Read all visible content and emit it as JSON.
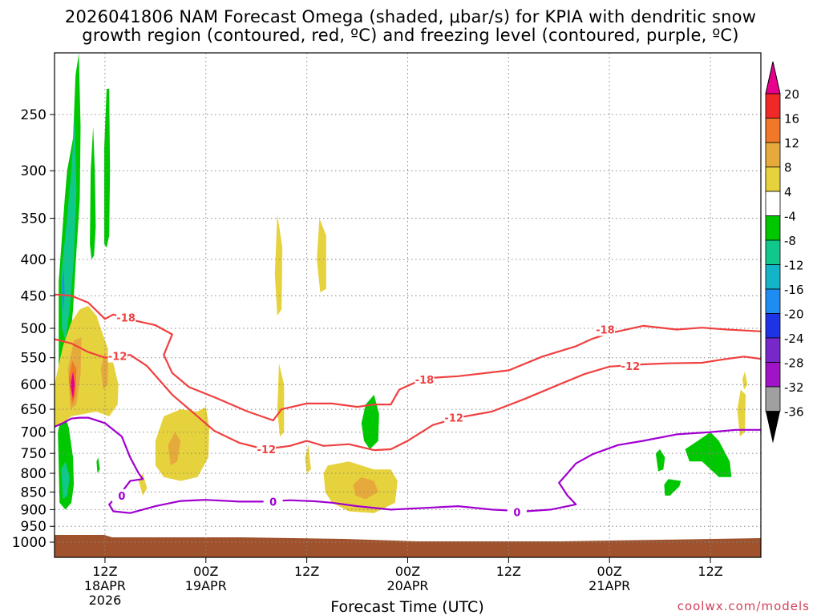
{
  "title_line1": "2026041806 NAM Forecast Omega (shaded, μbar/s) for KPIA with dendritic snow",
  "title_line2": "growth region (contoured, red, ºC) and freezing level (contoured, purple, ºC)",
  "watermark": "coolwx.com/models",
  "chart_data": {
    "type": "heatmap",
    "title": "2026041806 NAM Forecast Omega (shaded, μbar/s) for KPIA with dendritic snow growth region (contoured, red, ºC) and freezing level (contoured, purple, ºC)",
    "xlabel": "Forecast Time (UTC)",
    "ylabel": "",
    "x_ticks": [
      {
        "hour": 6,
        "label": [
          "12Z",
          "18APR",
          "2026"
        ]
      },
      {
        "hour": 18,
        "label": [
          "00Z",
          "19APR"
        ]
      },
      {
        "hour": 30,
        "label": [
          "12Z"
        ]
      },
      {
        "hour": 42,
        "label": [
          "00Z",
          "20APR"
        ]
      },
      {
        "hour": 54,
        "label": [
          "12Z"
        ]
      },
      {
        "hour": 66,
        "label": [
          "00Z",
          "21APR"
        ]
      },
      {
        "hour": 78,
        "label": [
          "12Z"
        ]
      }
    ],
    "xlim": [
      0,
      84
    ],
    "y_ticks": [
      250,
      300,
      350,
      400,
      450,
      500,
      550,
      600,
      650,
      700,
      750,
      800,
      850,
      900,
      950,
      1000
    ],
    "ylim_hpa": [
      1030,
      200
    ],
    "grid": true,
    "colorbar": {
      "labels": [
        "20",
        "16",
        "12",
        "8",
        "4",
        "-4",
        "-8",
        "-12",
        "-16",
        "-20",
        "-24",
        "-28",
        "-32",
        "-36"
      ],
      "colors": [
        "#f02828",
        "#f07828",
        "#e6aa3c",
        "#e6d23c",
        "#ffffff",
        "#00c800",
        "#10c88c",
        "#14b4c8",
        "#1e8cf0",
        "#1e32e6",
        "#7828c8",
        "#a014c8",
        "#a0a0a0"
      ],
      "top_arrow": "#e6008c",
      "bottom_arrow": "#000000"
    },
    "terrain_color": "#a0522d",
    "contours": [
      {
        "name": "-18",
        "color": "#f04040",
        "labels": [
          {
            "text": "-18",
            "at": [
              8.5,
              483
            ]
          },
          {
            "text": "-18",
            "at": [
              44,
              590
            ]
          },
          {
            "text": "-18",
            "at": [
              65.5,
              502
            ]
          }
        ],
        "path": [
          [
            0,
            448
          ],
          [
            2,
            450
          ],
          [
            4,
            460
          ],
          [
            6,
            485
          ],
          [
            7,
            478
          ],
          [
            9,
            486
          ],
          [
            12,
            495
          ],
          [
            14,
            510
          ],
          [
            13,
            545
          ],
          [
            14,
            578
          ],
          [
            16,
            605
          ],
          [
            19,
            625
          ],
          [
            23,
            655
          ],
          [
            26,
            674
          ],
          [
            27,
            650
          ],
          [
            30,
            638
          ],
          [
            33,
            638
          ],
          [
            36,
            645
          ],
          [
            38,
            640
          ],
          [
            40,
            640
          ],
          [
            41,
            610
          ],
          [
            44,
            588
          ],
          [
            48,
            584
          ],
          [
            54,
            573
          ],
          [
            58,
            548
          ],
          [
            62,
            530
          ],
          [
            64,
            517
          ],
          [
            66,
            508
          ],
          [
            70,
            496
          ],
          [
            74,
            502
          ],
          [
            77,
            499
          ],
          [
            80,
            502
          ],
          [
            84,
            505
          ]
        ]
      },
      {
        "name": "-12",
        "color": "#f04040",
        "labels": [
          {
            "text": "-12",
            "at": [
              7.5,
              547
            ]
          },
          {
            "text": "-12",
            "at": [
              25.2,
              740
            ]
          },
          {
            "text": "-12",
            "at": [
              47.5,
              668
            ]
          },
          {
            "text": "-12",
            "at": [
              68.5,
              565
            ]
          }
        ],
        "path": [
          [
            0,
            518
          ],
          [
            2,
            525
          ],
          [
            4,
            540
          ],
          [
            6,
            550
          ],
          [
            9,
            545
          ],
          [
            11,
            565
          ],
          [
            14,
            620
          ],
          [
            17,
            665
          ],
          [
            19,
            697
          ],
          [
            22,
            725
          ],
          [
            25,
            740
          ],
          [
            28,
            732
          ],
          [
            30,
            720
          ],
          [
            32,
            732
          ],
          [
            35,
            728
          ],
          [
            38,
            742
          ],
          [
            40,
            740
          ],
          [
            42,
            720
          ],
          [
            45,
            684
          ],
          [
            48,
            668
          ],
          [
            52,
            655
          ],
          [
            56,
            628
          ],
          [
            60,
            600
          ],
          [
            63,
            580
          ],
          [
            66,
            566
          ],
          [
            70,
            562
          ],
          [
            73,
            560
          ],
          [
            77,
            559
          ],
          [
            80,
            552
          ],
          [
            82,
            548
          ],
          [
            84,
            552
          ]
        ]
      },
      {
        "name": "0",
        "color": "#a000d0",
        "labels": [
          {
            "text": "0",
            "at": [
              8,
              860
            ]
          },
          {
            "text": "0",
            "at": [
              26,
              877
            ]
          },
          {
            "text": "0",
            "at": [
              55,
              907
            ]
          }
        ],
        "path": [
          [
            0,
            688
          ],
          [
            1,
            680
          ],
          [
            2,
            670
          ],
          [
            3,
            668
          ],
          [
            4,
            668
          ],
          [
            6,
            680
          ],
          [
            8,
            710
          ],
          [
            9,
            760
          ],
          [
            10,
            800
          ],
          [
            10.5,
            815
          ],
          [
            9,
            820
          ],
          [
            8,
            850
          ],
          [
            6.5,
            885
          ],
          [
            7,
            905
          ],
          [
            9,
            910
          ],
          [
            12,
            890
          ],
          [
            15,
            875
          ],
          [
            18,
            872
          ],
          [
            22,
            877
          ],
          [
            25,
            877
          ],
          [
            28,
            873
          ],
          [
            31,
            876
          ],
          [
            33,
            880
          ],
          [
            36,
            890
          ],
          [
            40,
            900
          ],
          [
            44,
            895
          ],
          [
            48,
            890
          ],
          [
            52,
            900
          ],
          [
            56,
            905
          ],
          [
            59,
            900
          ],
          [
            62,
            885
          ],
          [
            61,
            860
          ],
          [
            60,
            825
          ],
          [
            61,
            800
          ],
          [
            62,
            775
          ],
          [
            64,
            752
          ],
          [
            67,
            730
          ],
          [
            70,
            720
          ],
          [
            74,
            705
          ],
          [
            78,
            700
          ],
          [
            81,
            695
          ],
          [
            84,
            695
          ]
        ]
      }
    ]
  }
}
